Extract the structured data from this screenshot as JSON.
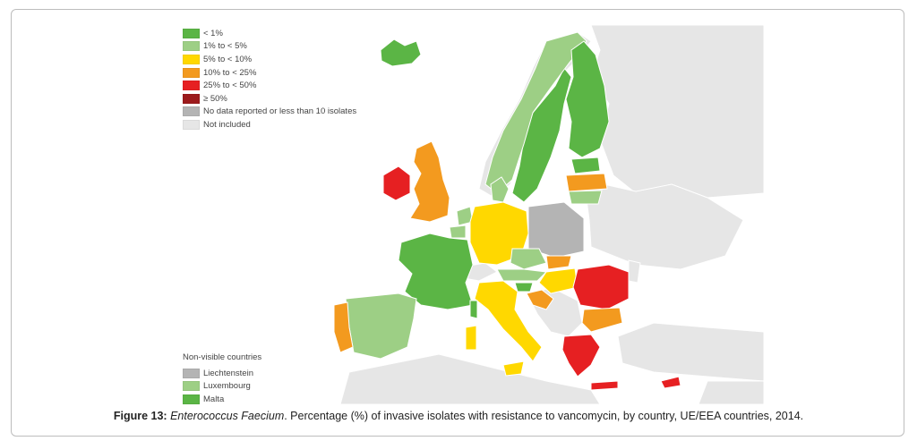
{
  "legend": {
    "items": [
      {
        "label": "< 1%",
        "color": "#5bb545"
      },
      {
        "label": "1% to < 5%",
        "color": "#9dcf85"
      },
      {
        "label": "5% to < 10%",
        "color": "#ffd800"
      },
      {
        "label": "10% to < 25%",
        "color": "#f39a1f"
      },
      {
        "label": "25% to < 50%",
        "color": "#e62022"
      },
      {
        "label": "≥ 50%",
        "color": "#9c1a1c"
      },
      {
        "label": "No data reported or less than 10 isolates",
        "color": "#b4b4b4"
      },
      {
        "label": "Not included",
        "color": "#e6e6e6"
      }
    ]
  },
  "non_visible": {
    "title": "Non-visible countries",
    "items": [
      {
        "label": "Liechtenstein",
        "color": "#b4b4b4"
      },
      {
        "label": "Luxembourg",
        "color": "#9dcf85"
      },
      {
        "label": "Malta",
        "color": "#5bb545"
      }
    ]
  },
  "caption": {
    "label": "Figure 13:",
    "species": "Enterococcus Faecium",
    "text": ". Percentage (%) of invasive isolates with resistance to vancomycin, by   country, UE/EEA countries, 2014."
  },
  "colors": {
    "not_included": "#e6e6e6",
    "sea": "#ffffff"
  }
}
